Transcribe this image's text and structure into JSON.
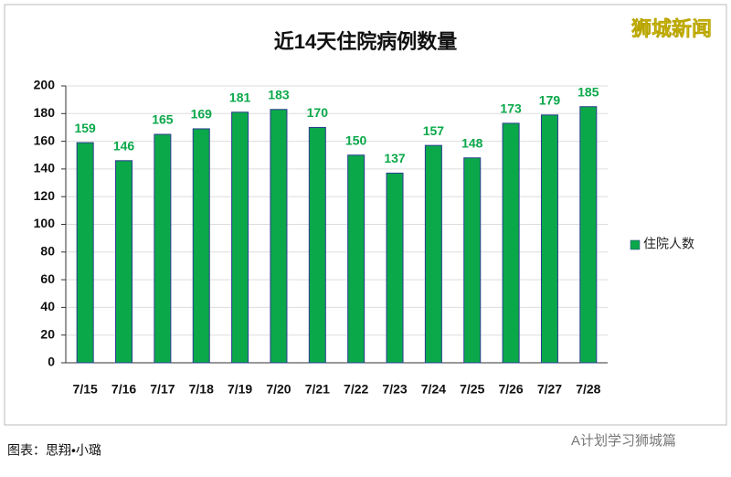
{
  "chart_data": {
    "type": "bar",
    "title": "近14天住院病例数量",
    "categories": [
      "7/15",
      "7/16",
      "7/17",
      "7/18",
      "7/19",
      "7/20",
      "7/21",
      "7/22",
      "7/23",
      "7/24",
      "7/25",
      "7/26",
      "7/27",
      "7/28"
    ],
    "series": [
      {
        "name": "住院人数",
        "color": "#0ba84a",
        "values": [
          159,
          146,
          165,
          169,
          181,
          183,
          170,
          150,
          137,
          157,
          148,
          173,
          179,
          185
        ]
      }
    ],
    "ylim": [
      0,
      200
    ],
    "yticks": [
      0,
      20,
      40,
      60,
      80,
      100,
      120,
      140,
      160,
      180,
      200
    ],
    "grid": true,
    "legend": "right"
  },
  "watermark": "狮城新闻",
  "caption": "图表：思翔•小璐",
  "source": "A计划学习狮城篇"
}
